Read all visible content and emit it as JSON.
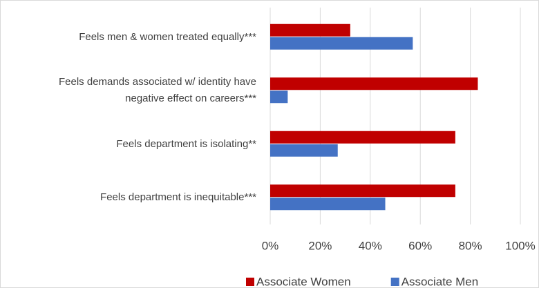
{
  "chart_data": {
    "type": "hbar",
    "categories": [
      "Feels men & women treated equally***",
      "Feels demands associated w/ identity have negative effect on careers***",
      "Feels department is isolating**",
      "Feels department is inequitable***"
    ],
    "series": [
      {
        "name": "Associate Women",
        "color": "#c00000",
        "values": [
          32,
          83,
          74,
          74
        ]
      },
      {
        "name": "Associate Men",
        "color": "#4472c4",
        "values": [
          57,
          7,
          27,
          46
        ]
      }
    ],
    "xlim": [
      0,
      100
    ],
    "xticks": [
      {
        "value": 0,
        "label": "0%"
      },
      {
        "value": 20,
        "label": "20%"
      },
      {
        "value": 40,
        "label": "40%"
      },
      {
        "value": 60,
        "label": "60%"
      },
      {
        "value": 80,
        "label": "80%"
      },
      {
        "value": 100,
        "label": "100%"
      }
    ],
    "grid": true,
    "legend": "bottom"
  }
}
